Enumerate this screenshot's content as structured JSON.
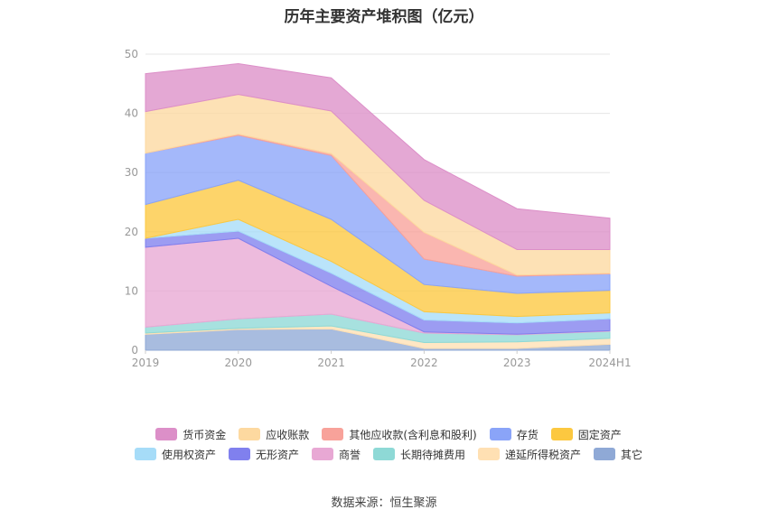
{
  "title": "历年主要资产堆积图（亿元）",
  "source": "数据来源：恒生聚源",
  "chart_data": {
    "type": "area",
    "stacked": true,
    "categories": [
      "2019",
      "2020",
      "2021",
      "2022",
      "2023",
      "2024H1"
    ],
    "ylim": [
      0,
      50
    ],
    "yticks": [
      0,
      10,
      20,
      30,
      40,
      50
    ],
    "grid": true,
    "legend_position": "bottom",
    "series": [
      {
        "name": "其它",
        "color": "#8fa9d6",
        "values": [
          2.7,
          3.5,
          3.6,
          0.3,
          0.3,
          1.0
        ]
      },
      {
        "name": "递延所得税资产",
        "color": "#ffe0b3",
        "values": [
          0.2,
          0.2,
          0.5,
          1.0,
          1.1,
          1.0
        ]
      },
      {
        "name": "长期待摊费用",
        "color": "#8ed9d6",
        "values": [
          1.0,
          1.6,
          2.0,
          1.6,
          1.2,
          1.2
        ]
      },
      {
        "name": "商誉",
        "color": "#e8a8d4",
        "values": [
          13.5,
          13.6,
          4.7,
          0.2,
          0.1,
          0.1
        ]
      },
      {
        "name": "无形资产",
        "color": "#8080ee",
        "values": [
          1.5,
          1.2,
          2.2,
          2.0,
          1.9,
          2.0
        ]
      },
      {
        "name": "使用权资产",
        "color": "#a6dcf8",
        "values": [
          0.0,
          2.0,
          2.0,
          1.4,
          1.1,
          1.0
        ]
      },
      {
        "name": "固定资产",
        "color": "#fcc840",
        "values": [
          5.7,
          6.6,
          7.1,
          4.6,
          3.9,
          3.8
        ]
      },
      {
        "name": "存货",
        "color": "#8aa4f8",
        "values": [
          8.7,
          7.6,
          10.8,
          4.3,
          2.9,
          2.8
        ]
      },
      {
        "name": "其他应收款(含利息和股利)",
        "color": "#f8a29a",
        "values": [
          0.0,
          0.2,
          0.3,
          4.5,
          0.2,
          0.1
        ]
      },
      {
        "name": "应收账款",
        "color": "#fdd9a0",
        "values": [
          7.0,
          6.7,
          7.2,
          5.4,
          4.3,
          4.0
        ]
      },
      {
        "name": "货币资金",
        "color": "#dc8fc8",
        "values": [
          6.4,
          5.2,
          5.6,
          6.9,
          6.9,
          5.3
        ]
      }
    ],
    "legend_rows": [
      [
        {
          "name": "货币资金",
          "color": "#dc8fc8"
        },
        {
          "name": "应收账款",
          "color": "#fdd9a0"
        },
        {
          "name": "其他应收款(含利息和股利)",
          "color": "#f8a29a"
        },
        {
          "name": "存货",
          "color": "#8aa4f8"
        },
        {
          "name": "固定资产",
          "color": "#fcc840"
        }
      ],
      [
        {
          "name": "使用权资产",
          "color": "#a6dcf8"
        },
        {
          "name": "无形资产",
          "color": "#8080ee"
        },
        {
          "name": "商誉",
          "color": "#e8a8d4"
        },
        {
          "name": "长期待摊费用",
          "color": "#8ed9d6"
        },
        {
          "name": "递延所得税资产",
          "color": "#ffe0b3"
        },
        {
          "name": "其它",
          "color": "#8fa9d6"
        }
      ]
    ]
  }
}
